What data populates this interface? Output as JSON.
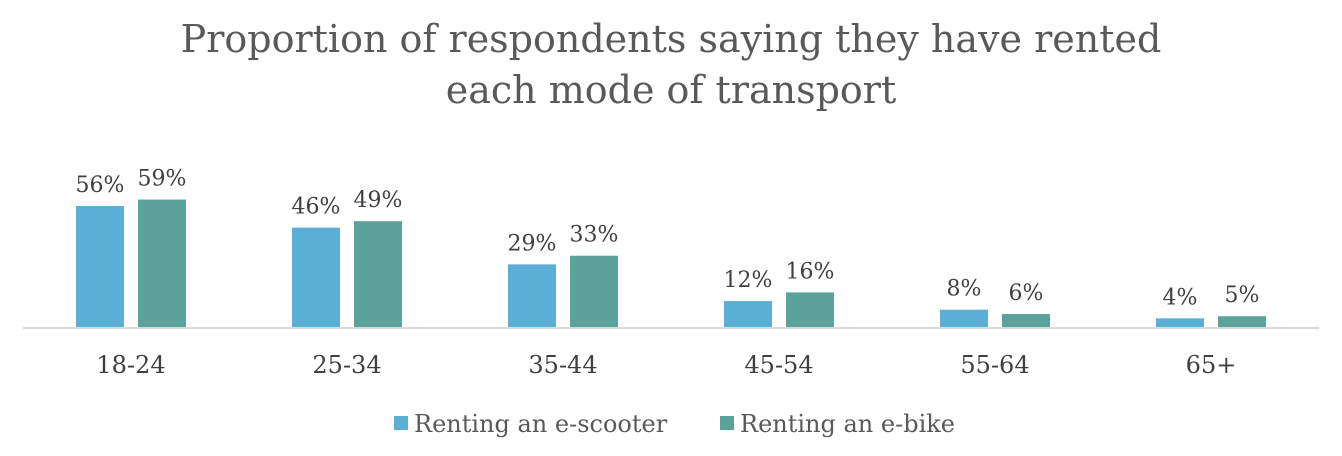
{
  "chart_data": {
    "type": "bar",
    "title_lines": [
      "Proportion of respondents saying they have rented",
      "each mode of transport"
    ],
    "xlabel": "",
    "ylabel": "",
    "categories": [
      "18-24",
      "25-34",
      "35-44",
      "45-54",
      "55-64",
      "65+"
    ],
    "series": [
      {
        "name": "Renting an e-scooter",
        "color": "#5bafd6",
        "values": [
          56,
          46,
          29,
          12,
          8,
          4
        ],
        "labels": [
          "56%",
          "46%",
          "29%",
          "12%",
          "8%",
          "4%"
        ]
      },
      {
        "name": "Renting an e-bike",
        "color": "#5ba39a",
        "values": [
          59,
          49,
          33,
          16,
          6,
          5
        ],
        "labels": [
          "59%",
          "49%",
          "33%",
          "16%",
          "6%",
          "5%"
        ]
      }
    ],
    "ylim": [
      0,
      60
    ],
    "grid": false,
    "legend": "bottom",
    "axis_color": "#d9d9d9"
  }
}
